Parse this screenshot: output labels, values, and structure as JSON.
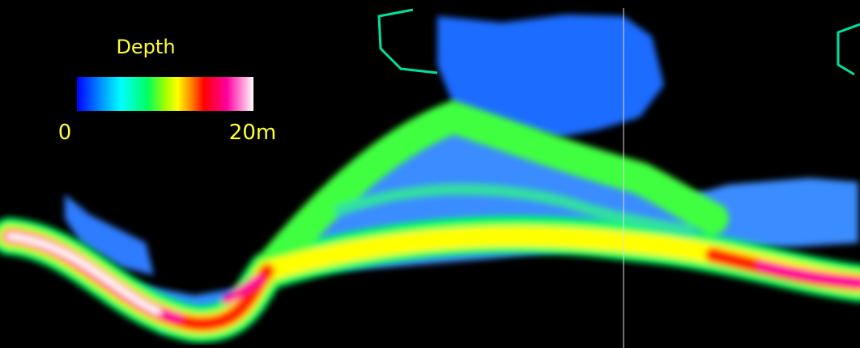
{
  "legend": {
    "title": "Depth",
    "min_label": "0",
    "max_label": "20m"
  }
}
